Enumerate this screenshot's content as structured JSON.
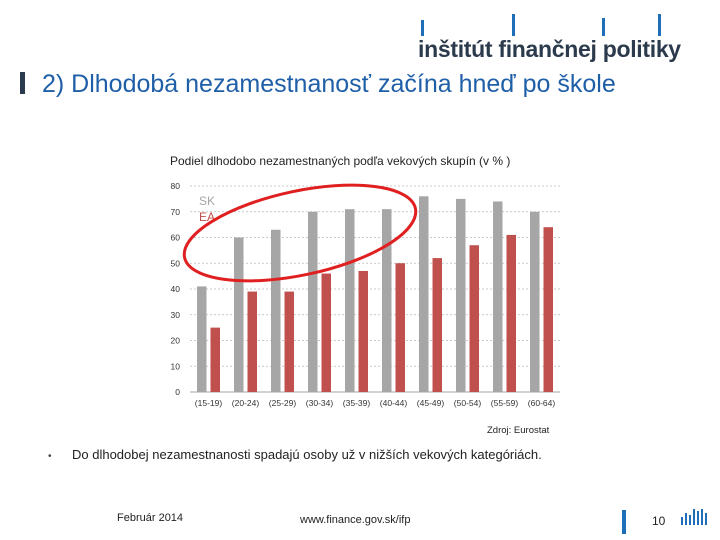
{
  "logo": {
    "text": "inštitút finančnej politiky"
  },
  "slide": {
    "title": "2) Dlhodobá nezamestnanosť začína hneď po škole",
    "chart_title": "Podiel dlhodobo nezamestnaných podľa vekových skupín (v % )",
    "source": "Zdroj: Eurostat",
    "bullet": "Do dlhodobej nezamestnanosti spadajú osoby už v nižších vekových kategóriách."
  },
  "footer": {
    "date": "Február 2014",
    "url": "www.finance.gov.sk/ifp",
    "page": "10"
  },
  "colors": {
    "sk": "#a6a6a6",
    "ea": "#c0504d",
    "accent": "#1f5fa8",
    "ellipse": "#e02020"
  },
  "chart_data": {
    "type": "bar",
    "categories": [
      "(15-19)",
      "(20-24)",
      "(25-29)",
      "(30-34)",
      "(35-39)",
      "(40-44)",
      "(45-49)",
      "(50-54)",
      "(55-59)",
      "(60-64)"
    ],
    "series": [
      {
        "name": "SK",
        "values": [
          41,
          60,
          63,
          70,
          71,
          71,
          76,
          75,
          74,
          70
        ]
      },
      {
        "name": "EA",
        "values": [
          25,
          39,
          39,
          46,
          47,
          50,
          52,
          57,
          61,
          64
        ]
      }
    ],
    "y_ticks": [
      "0",
      "10",
      "20",
      "30",
      "40",
      "50",
      "60",
      "70",
      "80"
    ],
    "ylim": [
      0,
      80
    ],
    "grid": true,
    "legend": "top-left"
  }
}
